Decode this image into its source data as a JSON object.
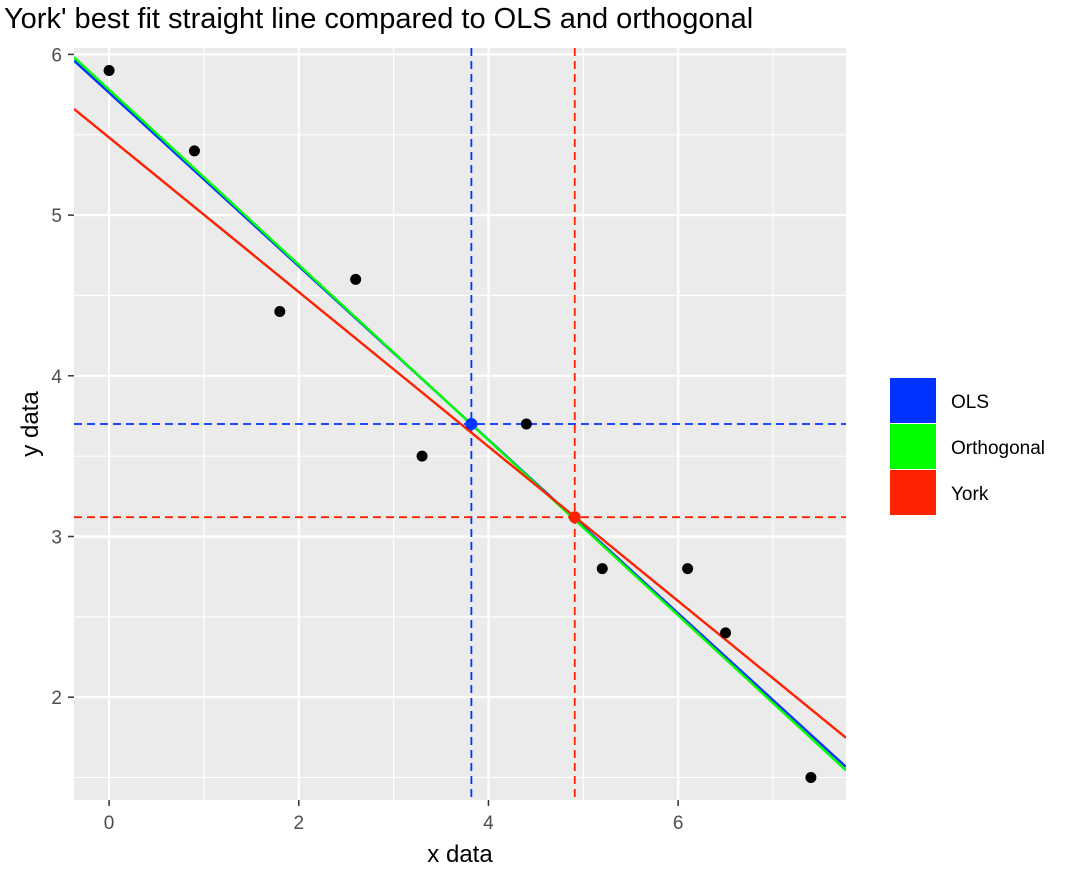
{
  "chart_data": {
    "type": "scatter",
    "title": "York' best fit straight line compared to OLS and orthogonal",
    "xlabel": "x data",
    "ylabel": "y data",
    "xlim": [
      -0.37,
      7.77
    ],
    "ylim": [
      1.36,
      6.04
    ],
    "x_ticks": [
      0,
      2,
      4,
      6
    ],
    "y_ticks": [
      2,
      3,
      4,
      5,
      6
    ],
    "grid": true,
    "points": {
      "x": [
        0,
        0.9,
        1.8,
        2.6,
        3.3,
        4.4,
        5.2,
        6.1,
        6.5,
        7.4
      ],
      "y": [
        5.9,
        5.4,
        4.4,
        4.6,
        3.5,
        3.7,
        2.8,
        2.8,
        2.4,
        1.5
      ],
      "color": "#000000"
    },
    "lines": [
      {
        "name": "OLS",
        "intercept": 5.762,
        "slope": -0.54,
        "color": "#0033ff"
      },
      {
        "name": "Orthogonal",
        "intercept": 5.781,
        "slope": -0.5453,
        "color": "#00ff00"
      },
      {
        "name": "York",
        "intercept": 5.483,
        "slope": -0.4808,
        "color": "#ff2200"
      }
    ],
    "centroids": [
      {
        "name": "OLS",
        "x": 3.82,
        "y": 3.7,
        "color": "#0033ff"
      },
      {
        "name": "York",
        "x": 4.91,
        "y": 3.12,
        "color": "#ff2200"
      }
    ],
    "legend": {
      "position": "right",
      "entries": [
        {
          "label": "OLS",
          "color": "#0033ff"
        },
        {
          "label": "Orthogonal",
          "color": "#00ff00"
        },
        {
          "label": "York",
          "color": "#ff2200"
        }
      ]
    },
    "colors": {
      "panel_background": "#ebebeb",
      "grid": "#ffffff",
      "tick_text": "#4d4d4d"
    }
  }
}
